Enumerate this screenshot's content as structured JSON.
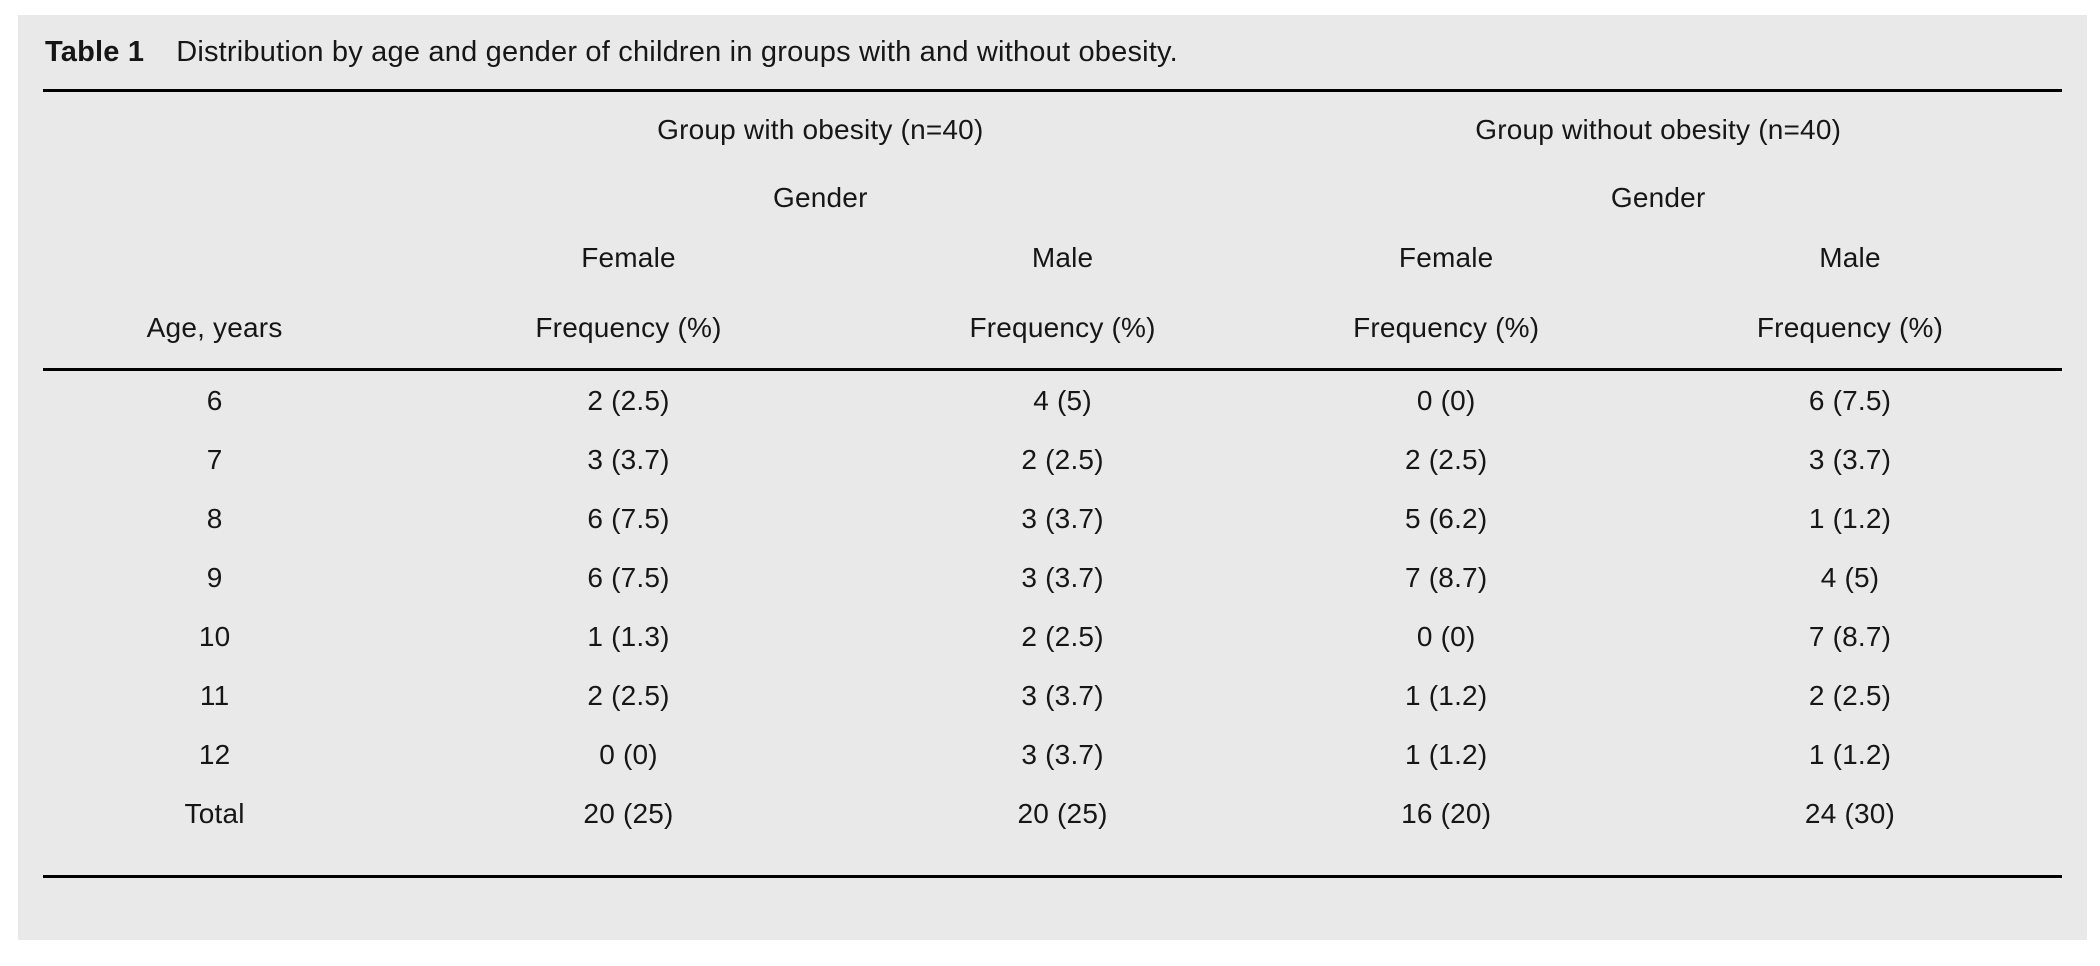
{
  "title": {
    "label": "Table 1",
    "caption": "Distribution by age and gender of children in groups with and without obesity."
  },
  "table": {
    "group_headers": [
      {
        "label": "Group with obesity (n=40)"
      },
      {
        "label": "Group without obesity (n=40)"
      }
    ],
    "gender_header": "Gender",
    "sex_headers": [
      "Female",
      "Male",
      "Female",
      "Male"
    ],
    "age_column_header": "Age, years",
    "frequency_header": "Frequency (%)",
    "rows": [
      {
        "age": "6",
        "cells": [
          "2 (2.5)",
          "4 (5)",
          "0 (0)",
          "6 (7.5)"
        ]
      },
      {
        "age": "7",
        "cells": [
          "3 (3.7)",
          "2 (2.5)",
          "2 (2.5)",
          "3 (3.7)"
        ]
      },
      {
        "age": "8",
        "cells": [
          "6 (7.5)",
          "3 (3.7)",
          "5 (6.2)",
          "1 (1.2)"
        ]
      },
      {
        "age": "9",
        "cells": [
          "6 (7.5)",
          "3 (3.7)",
          "7 (8.7)",
          "4 (5)"
        ]
      },
      {
        "age": "10",
        "cells": [
          "1 (1.3)",
          "2 (2.5)",
          "0 (0)",
          "7 (8.7)"
        ]
      },
      {
        "age": "11",
        "cells": [
          "2 (2.5)",
          "3 (3.7)",
          "1 (1.2)",
          "2 (2.5)"
        ]
      },
      {
        "age": "12",
        "cells": [
          "0 (0)",
          "3 (3.7)",
          "1 (1.2)",
          "1 (1.2)"
        ]
      },
      {
        "age": "Total",
        "cells": [
          "20 (25)",
          "20 (25)",
          "16 (20)",
          "24 (30)"
        ]
      }
    ]
  },
  "colors": {
    "panel_background": "#e9e9e9",
    "text": "#161616",
    "rule": "#000000"
  }
}
